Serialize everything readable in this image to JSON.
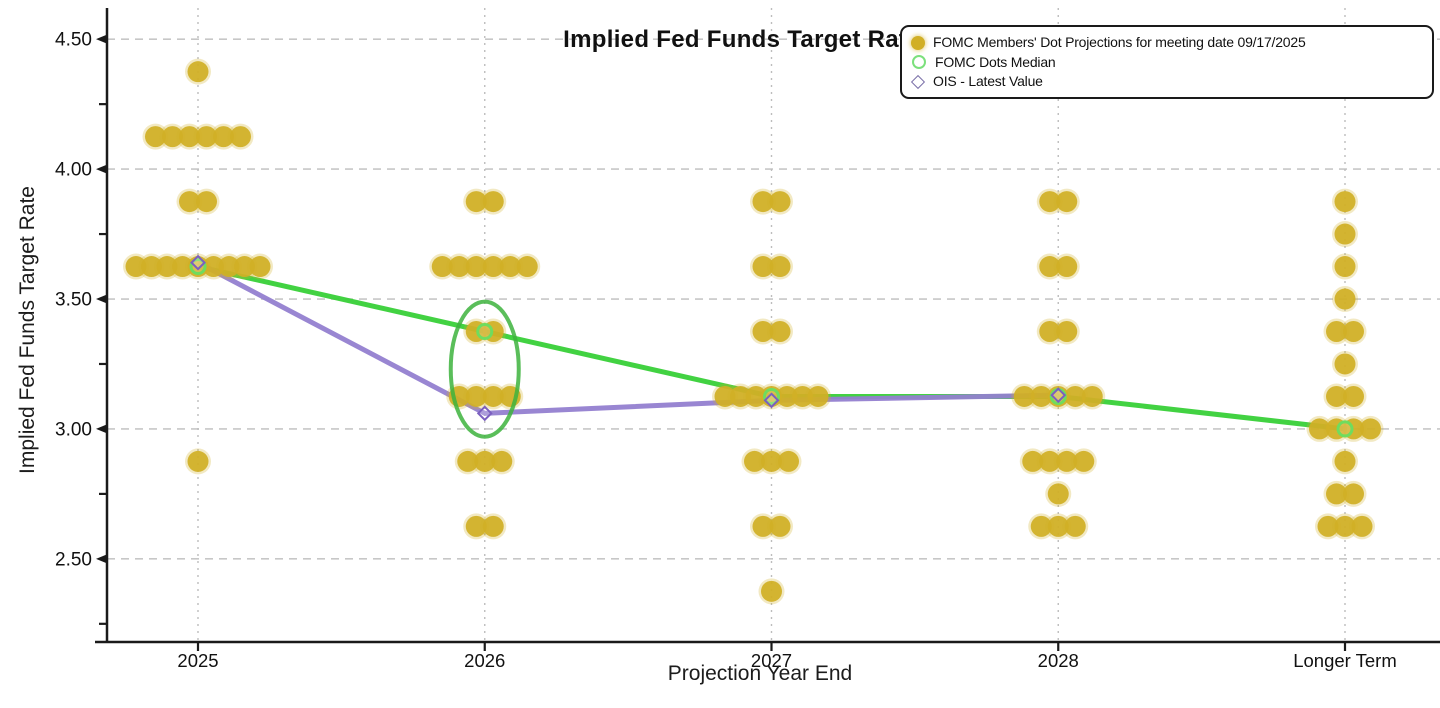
{
  "chart_data": {
    "type": "scatter",
    "title": "Implied Fed Funds Target Rate",
    "xlabel": "Projection Year End",
    "ylabel": "Implied Fed Funds Target Rate",
    "categories": [
      "2025",
      "2026",
      "2027",
      "2028",
      "Longer Term"
    ],
    "ylim": [
      2.18,
      4.62
    ],
    "yticks_major": [
      4.5,
      4.0,
      3.5,
      3.0,
      2.5
    ],
    "ytick_labels": [
      "4.50",
      "4.00",
      "3.50",
      "3.00",
      "2.50"
    ],
    "yticks_minor": [
      4.25,
      3.75,
      3.25,
      2.75,
      2.25
    ],
    "grid": "dashed",
    "legend_position": "top-right",
    "series": [
      {
        "name": "FOMC Members' Dot Projections for meeting date 09/17/2025",
        "type": "dot-cluster",
        "marker": "filled-circle",
        "color": "#d1af26",
        "clusters": [
          {
            "category": "2025",
            "dots": [
              {
                "rate": 4.375,
                "count": 1
              },
              {
                "rate": 4.125,
                "count": 6
              },
              {
                "rate": 3.875,
                "count": 2
              },
              {
                "rate": 3.625,
                "count": 9
              },
              {
                "rate": 2.875,
                "count": 1
              }
            ]
          },
          {
            "category": "2026",
            "dots": [
              {
                "rate": 3.875,
                "count": 2
              },
              {
                "rate": 3.625,
                "count": 6
              },
              {
                "rate": 3.375,
                "count": 2
              },
              {
                "rate": 3.125,
                "count": 4
              },
              {
                "rate": 2.875,
                "count": 3
              },
              {
                "rate": 2.625,
                "count": 2
              }
            ]
          },
          {
            "category": "2027",
            "dots": [
              {
                "rate": 3.875,
                "count": 2
              },
              {
                "rate": 3.625,
                "count": 2
              },
              {
                "rate": 3.375,
                "count": 2
              },
              {
                "rate": 3.125,
                "count": 7
              },
              {
                "rate": 2.875,
                "count": 3
              },
              {
                "rate": 2.625,
                "count": 2
              },
              {
                "rate": 2.375,
                "count": 1
              }
            ]
          },
          {
            "category": "2028",
            "dots": [
              {
                "rate": 3.875,
                "count": 2
              },
              {
                "rate": 3.625,
                "count": 2
              },
              {
                "rate": 3.375,
                "count": 2
              },
              {
                "rate": 3.125,
                "count": 5
              },
              {
                "rate": 2.875,
                "count": 4
              },
              {
                "rate": 2.75,
                "count": 1
              },
              {
                "rate": 2.625,
                "count": 3
              }
            ]
          },
          {
            "category": "Longer Term",
            "dots": [
              {
                "rate": 3.875,
                "count": 1
              },
              {
                "rate": 3.75,
                "count": 1
              },
              {
                "rate": 3.625,
                "count": 1
              },
              {
                "rate": 3.5,
                "count": 1
              },
              {
                "rate": 3.375,
                "count": 2
              },
              {
                "rate": 3.25,
                "count": 1
              },
              {
                "rate": 3.125,
                "count": 2
              },
              {
                "rate": 3.0,
                "count": 4
              },
              {
                "rate": 2.875,
                "count": 1
              },
              {
                "rate": 2.75,
                "count": 2
              },
              {
                "rate": 2.625,
                "count": 3
              }
            ]
          }
        ]
      },
      {
        "name": "FOMC Dots Median",
        "type": "line",
        "marker": "open-circle",
        "color": "#38d038",
        "marker_color": "#6fdc5e",
        "values": [
          3.625,
          3.375,
          3.125,
          3.125,
          3.0
        ]
      },
      {
        "name": "OIS - Latest Value",
        "type": "line",
        "marker": "open-diamond",
        "color": "#9480d0",
        "marker_color": "#7b5fc0",
        "values": [
          3.64,
          3.06,
          3.11,
          3.13,
          null
        ]
      }
    ],
    "annotations": [
      {
        "type": "ellipse",
        "category": "2026",
        "rate_top": 3.49,
        "rate_bottom": 2.97,
        "color": "#3db33d"
      }
    ]
  }
}
